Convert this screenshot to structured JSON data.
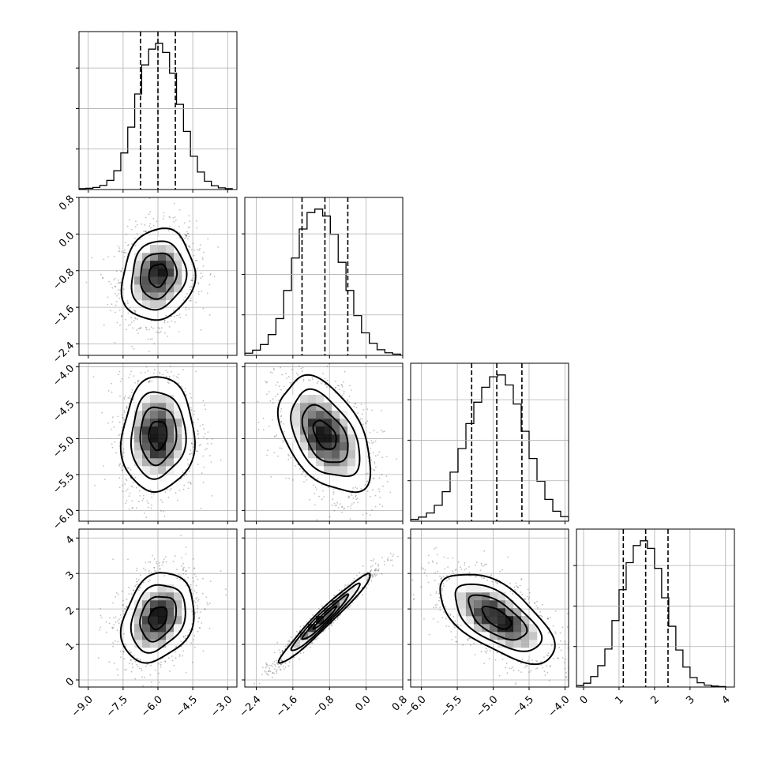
{
  "chart_data": {
    "type": "corner",
    "n_parameters": 4,
    "grid": true,
    "colors": {
      "line": "#000000",
      "grid": "#b0b0b0",
      "background": "#ffffff",
      "samples": "#555555"
    },
    "parameters": [
      {
        "index": 0,
        "mean": -6.0,
        "std": 0.78,
        "range": [
          -9.4,
          -2.6
        ],
        "quantiles": [
          -6.75,
          -6.0,
          -5.25
        ],
        "ticks": [
          -9.0,
          -7.5,
          -6.0,
          -4.5,
          -3.0
        ],
        "tick_labels": [
          "−9.0",
          "−7.5",
          "−6.0",
          "−4.5",
          "−3.0"
        ],
        "hist_bins": [
          -9.4,
          -9.1,
          -8.8,
          -8.5,
          -8.2,
          -7.9,
          -7.6,
          -7.3,
          -7.0,
          -6.7,
          -6.4,
          -6.1,
          -5.8,
          -5.5,
          -5.2,
          -4.9,
          -4.6,
          -4.3,
          -4.0,
          -3.7,
          -3.4,
          -3.1,
          -2.8
        ],
        "hist_counts": [
          2,
          3,
          5,
          10,
          22,
          45,
          88,
          150,
          230,
          300,
          338,
          352,
          330,
          280,
          205,
          140,
          80,
          42,
          20,
          9,
          4,
          2
        ]
      },
      {
        "index": 1,
        "mean": -0.9,
        "std": 0.5,
        "range": [
          -2.65,
          0.8
        ],
        "quantiles": [
          -1.4,
          -0.9,
          -0.4
        ],
        "ticks": [
          -2.4,
          -1.6,
          -0.8,
          0.0,
          0.8
        ],
        "tick_labels": [
          "−2.4",
          "−1.6",
          "−0.8",
          "0.0",
          "0.8"
        ],
        "hist_bins": [
          -2.65,
          -2.48,
          -2.31,
          -2.14,
          -1.97,
          -1.8,
          -1.63,
          -1.46,
          -1.29,
          -1.12,
          -0.95,
          -0.78,
          -0.61,
          -0.44,
          -0.27,
          -0.1,
          0.07,
          0.24,
          0.41,
          0.58,
          0.75
        ],
        "hist_counts": [
          5,
          12,
          25,
          48,
          85,
          150,
          225,
          292,
          330,
          338,
          322,
          280,
          215,
          150,
          92,
          52,
          28,
          13,
          6,
          3
        ]
      },
      {
        "index": 2,
        "mean": -4.95,
        "std": 0.4,
        "range": [
          -6.15,
          -3.95
        ],
        "quantiles": [
          -5.3,
          -4.95,
          -4.6
        ],
        "ticks": [
          -6.0,
          -5.5,
          -5.0,
          -4.5,
          -4.0
        ],
        "tick_labels": [
          "−6.0",
          "−5.5",
          "−5.0",
          "−4.5",
          "−4.0"
        ],
        "hist_bins": [
          -6.15,
          -6.04,
          -5.93,
          -5.82,
          -5.71,
          -5.6,
          -5.49,
          -5.38,
          -5.27,
          -5.16,
          -5.05,
          -4.94,
          -4.83,
          -4.72,
          -4.61,
          -4.5,
          -4.39,
          -4.28,
          -4.17,
          -4.06,
          -3.95
        ],
        "hist_counts": [
          4,
          9,
          18,
          35,
          65,
          108,
          160,
          215,
          262,
          295,
          318,
          322,
          300,
          258,
          198,
          138,
          88,
          48,
          22,
          10
        ]
      },
      {
        "index": 3,
        "mean": 1.75,
        "std": 0.63,
        "range": [
          -0.2,
          4.25
        ],
        "quantiles": [
          1.12,
          1.75,
          2.38
        ],
        "ticks": [
          0,
          1,
          2,
          3,
          4
        ],
        "tick_labels": [
          "0",
          "1",
          "2",
          "3",
          "4"
        ],
        "hist_bins": [
          -0.2,
          0.0,
          0.2,
          0.4,
          0.6,
          0.8,
          1.0,
          1.2,
          1.4,
          1.6,
          1.8,
          2.0,
          2.2,
          2.4,
          2.6,
          2.8,
          3.0,
          3.2,
          3.4,
          3.6,
          3.8,
          4.0
        ],
        "hist_counts": [
          3,
          8,
          22,
          45,
          80,
          140,
          205,
          262,
          298,
          308,
          292,
          250,
          188,
          128,
          78,
          42,
          20,
          9,
          4,
          2,
          1
        ]
      }
    ],
    "correlations": [
      [
        1.0,
        0.12,
        0.05,
        0.25
      ],
      [
        0.12,
        1.0,
        -0.45,
        0.97
      ],
      [
        0.05,
        -0.45,
        1.0,
        -0.62
      ],
      [
        0.25,
        0.97,
        -0.62,
        1.0
      ]
    ],
    "contour_levels_sigma": [
      0.5,
      1.0,
      1.5,
      2.0
    ]
  }
}
